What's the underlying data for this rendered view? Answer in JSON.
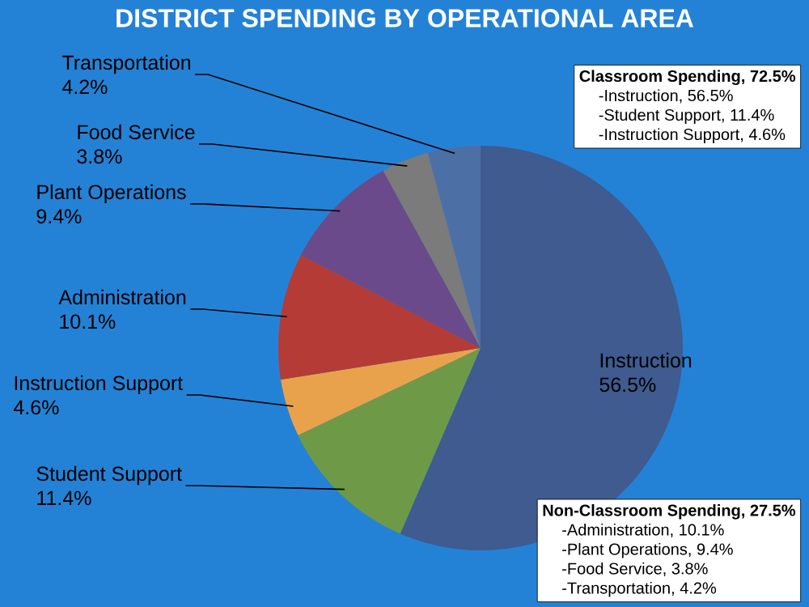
{
  "chart_data": {
    "type": "pie",
    "title": "DISTRICT SPENDING BY OPERATIONAL AREA",
    "categories": [
      "Instruction",
      "Student Support",
      "Instruction Support",
      "Administration",
      "Plant Operations",
      "Food Service",
      "Transportation"
    ],
    "values": [
      56.5,
      11.4,
      4.6,
      10.1,
      9.4,
      3.8,
      4.2
    ],
    "value_labels": [
      "56.5%",
      "11.4%",
      "4.6%",
      "10.1%",
      "9.4%",
      "3.8%",
      "4.2%"
    ],
    "colors": [
      "#3f5b8f",
      "#6e9a48",
      "#e9a24c",
      "#b53b36",
      "#6a4a8a",
      "#7b7b7b",
      "#4c6fa6"
    ],
    "annotations": [
      "Classroom Spending, 72.5%",
      "-Instruction, 56.5%",
      "-Student Support, 11.4%",
      "-Instruction Support, 4.6%",
      "Non-Classroom Spending, 27.5%",
      "-Administration, 10.1%",
      "-Plant Operations, 9.4%",
      "-Food Service, 3.8%",
      "-Transportation, 4.2%"
    ]
  }
}
